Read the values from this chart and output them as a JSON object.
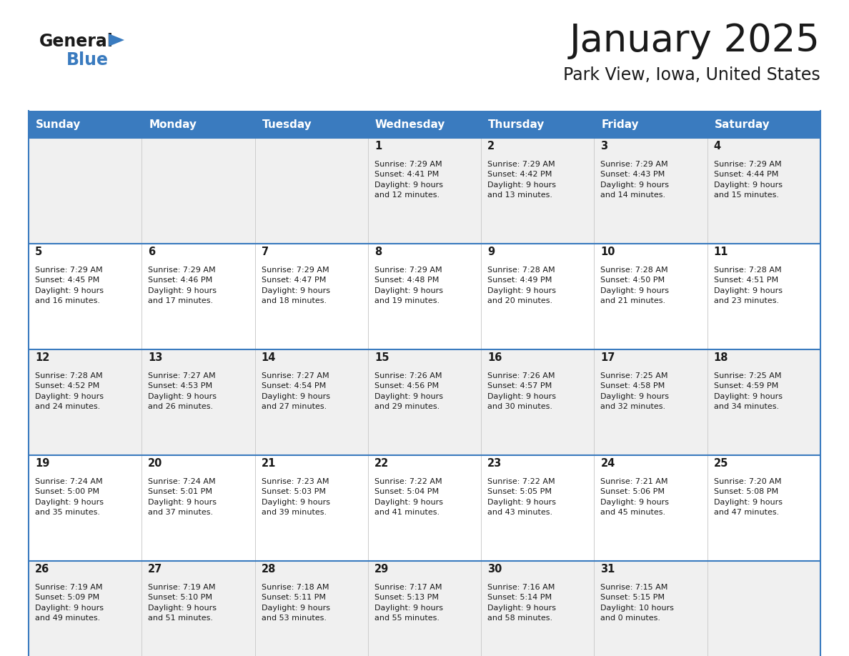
{
  "title": "January 2025",
  "subtitle": "Park View, Iowa, United States",
  "header_color": "#3a7bbf",
  "header_text_color": "#ffffff",
  "cell_bg_white": "#ffffff",
  "cell_bg_gray": "#f0f0f0",
  "border_color": "#3a7bbf",
  "text_color": "#1a1a1a",
  "days_of_week": [
    "Sunday",
    "Monday",
    "Tuesday",
    "Wednesday",
    "Thursday",
    "Friday",
    "Saturday"
  ],
  "calendar": [
    [
      {
        "day": "",
        "info": ""
      },
      {
        "day": "",
        "info": ""
      },
      {
        "day": "",
        "info": ""
      },
      {
        "day": "1",
        "info": "Sunrise: 7:29 AM\nSunset: 4:41 PM\nDaylight: 9 hours\nand 12 minutes."
      },
      {
        "day": "2",
        "info": "Sunrise: 7:29 AM\nSunset: 4:42 PM\nDaylight: 9 hours\nand 13 minutes."
      },
      {
        "day": "3",
        "info": "Sunrise: 7:29 AM\nSunset: 4:43 PM\nDaylight: 9 hours\nand 14 minutes."
      },
      {
        "day": "4",
        "info": "Sunrise: 7:29 AM\nSunset: 4:44 PM\nDaylight: 9 hours\nand 15 minutes."
      }
    ],
    [
      {
        "day": "5",
        "info": "Sunrise: 7:29 AM\nSunset: 4:45 PM\nDaylight: 9 hours\nand 16 minutes."
      },
      {
        "day": "6",
        "info": "Sunrise: 7:29 AM\nSunset: 4:46 PM\nDaylight: 9 hours\nand 17 minutes."
      },
      {
        "day": "7",
        "info": "Sunrise: 7:29 AM\nSunset: 4:47 PM\nDaylight: 9 hours\nand 18 minutes."
      },
      {
        "day": "8",
        "info": "Sunrise: 7:29 AM\nSunset: 4:48 PM\nDaylight: 9 hours\nand 19 minutes."
      },
      {
        "day": "9",
        "info": "Sunrise: 7:28 AM\nSunset: 4:49 PM\nDaylight: 9 hours\nand 20 minutes."
      },
      {
        "day": "10",
        "info": "Sunrise: 7:28 AM\nSunset: 4:50 PM\nDaylight: 9 hours\nand 21 minutes."
      },
      {
        "day": "11",
        "info": "Sunrise: 7:28 AM\nSunset: 4:51 PM\nDaylight: 9 hours\nand 23 minutes."
      }
    ],
    [
      {
        "day": "12",
        "info": "Sunrise: 7:28 AM\nSunset: 4:52 PM\nDaylight: 9 hours\nand 24 minutes."
      },
      {
        "day": "13",
        "info": "Sunrise: 7:27 AM\nSunset: 4:53 PM\nDaylight: 9 hours\nand 26 minutes."
      },
      {
        "day": "14",
        "info": "Sunrise: 7:27 AM\nSunset: 4:54 PM\nDaylight: 9 hours\nand 27 minutes."
      },
      {
        "day": "15",
        "info": "Sunrise: 7:26 AM\nSunset: 4:56 PM\nDaylight: 9 hours\nand 29 minutes."
      },
      {
        "day": "16",
        "info": "Sunrise: 7:26 AM\nSunset: 4:57 PM\nDaylight: 9 hours\nand 30 minutes."
      },
      {
        "day": "17",
        "info": "Sunrise: 7:25 AM\nSunset: 4:58 PM\nDaylight: 9 hours\nand 32 minutes."
      },
      {
        "day": "18",
        "info": "Sunrise: 7:25 AM\nSunset: 4:59 PM\nDaylight: 9 hours\nand 34 minutes."
      }
    ],
    [
      {
        "day": "19",
        "info": "Sunrise: 7:24 AM\nSunset: 5:00 PM\nDaylight: 9 hours\nand 35 minutes."
      },
      {
        "day": "20",
        "info": "Sunrise: 7:24 AM\nSunset: 5:01 PM\nDaylight: 9 hours\nand 37 minutes."
      },
      {
        "day": "21",
        "info": "Sunrise: 7:23 AM\nSunset: 5:03 PM\nDaylight: 9 hours\nand 39 minutes."
      },
      {
        "day": "22",
        "info": "Sunrise: 7:22 AM\nSunset: 5:04 PM\nDaylight: 9 hours\nand 41 minutes."
      },
      {
        "day": "23",
        "info": "Sunrise: 7:22 AM\nSunset: 5:05 PM\nDaylight: 9 hours\nand 43 minutes."
      },
      {
        "day": "24",
        "info": "Sunrise: 7:21 AM\nSunset: 5:06 PM\nDaylight: 9 hours\nand 45 minutes."
      },
      {
        "day": "25",
        "info": "Sunrise: 7:20 AM\nSunset: 5:08 PM\nDaylight: 9 hours\nand 47 minutes."
      }
    ],
    [
      {
        "day": "26",
        "info": "Sunrise: 7:19 AM\nSunset: 5:09 PM\nDaylight: 9 hours\nand 49 minutes."
      },
      {
        "day": "27",
        "info": "Sunrise: 7:19 AM\nSunset: 5:10 PM\nDaylight: 9 hours\nand 51 minutes."
      },
      {
        "day": "28",
        "info": "Sunrise: 7:18 AM\nSunset: 5:11 PM\nDaylight: 9 hours\nand 53 minutes."
      },
      {
        "day": "29",
        "info": "Sunrise: 7:17 AM\nSunset: 5:13 PM\nDaylight: 9 hours\nand 55 minutes."
      },
      {
        "day": "30",
        "info": "Sunrise: 7:16 AM\nSunset: 5:14 PM\nDaylight: 9 hours\nand 58 minutes."
      },
      {
        "day": "31",
        "info": "Sunrise: 7:15 AM\nSunset: 5:15 PM\nDaylight: 10 hours\nand 0 minutes."
      },
      {
        "day": "",
        "info": ""
      }
    ]
  ],
  "fig_width": 11.88,
  "fig_height": 9.18,
  "dpi": 100
}
